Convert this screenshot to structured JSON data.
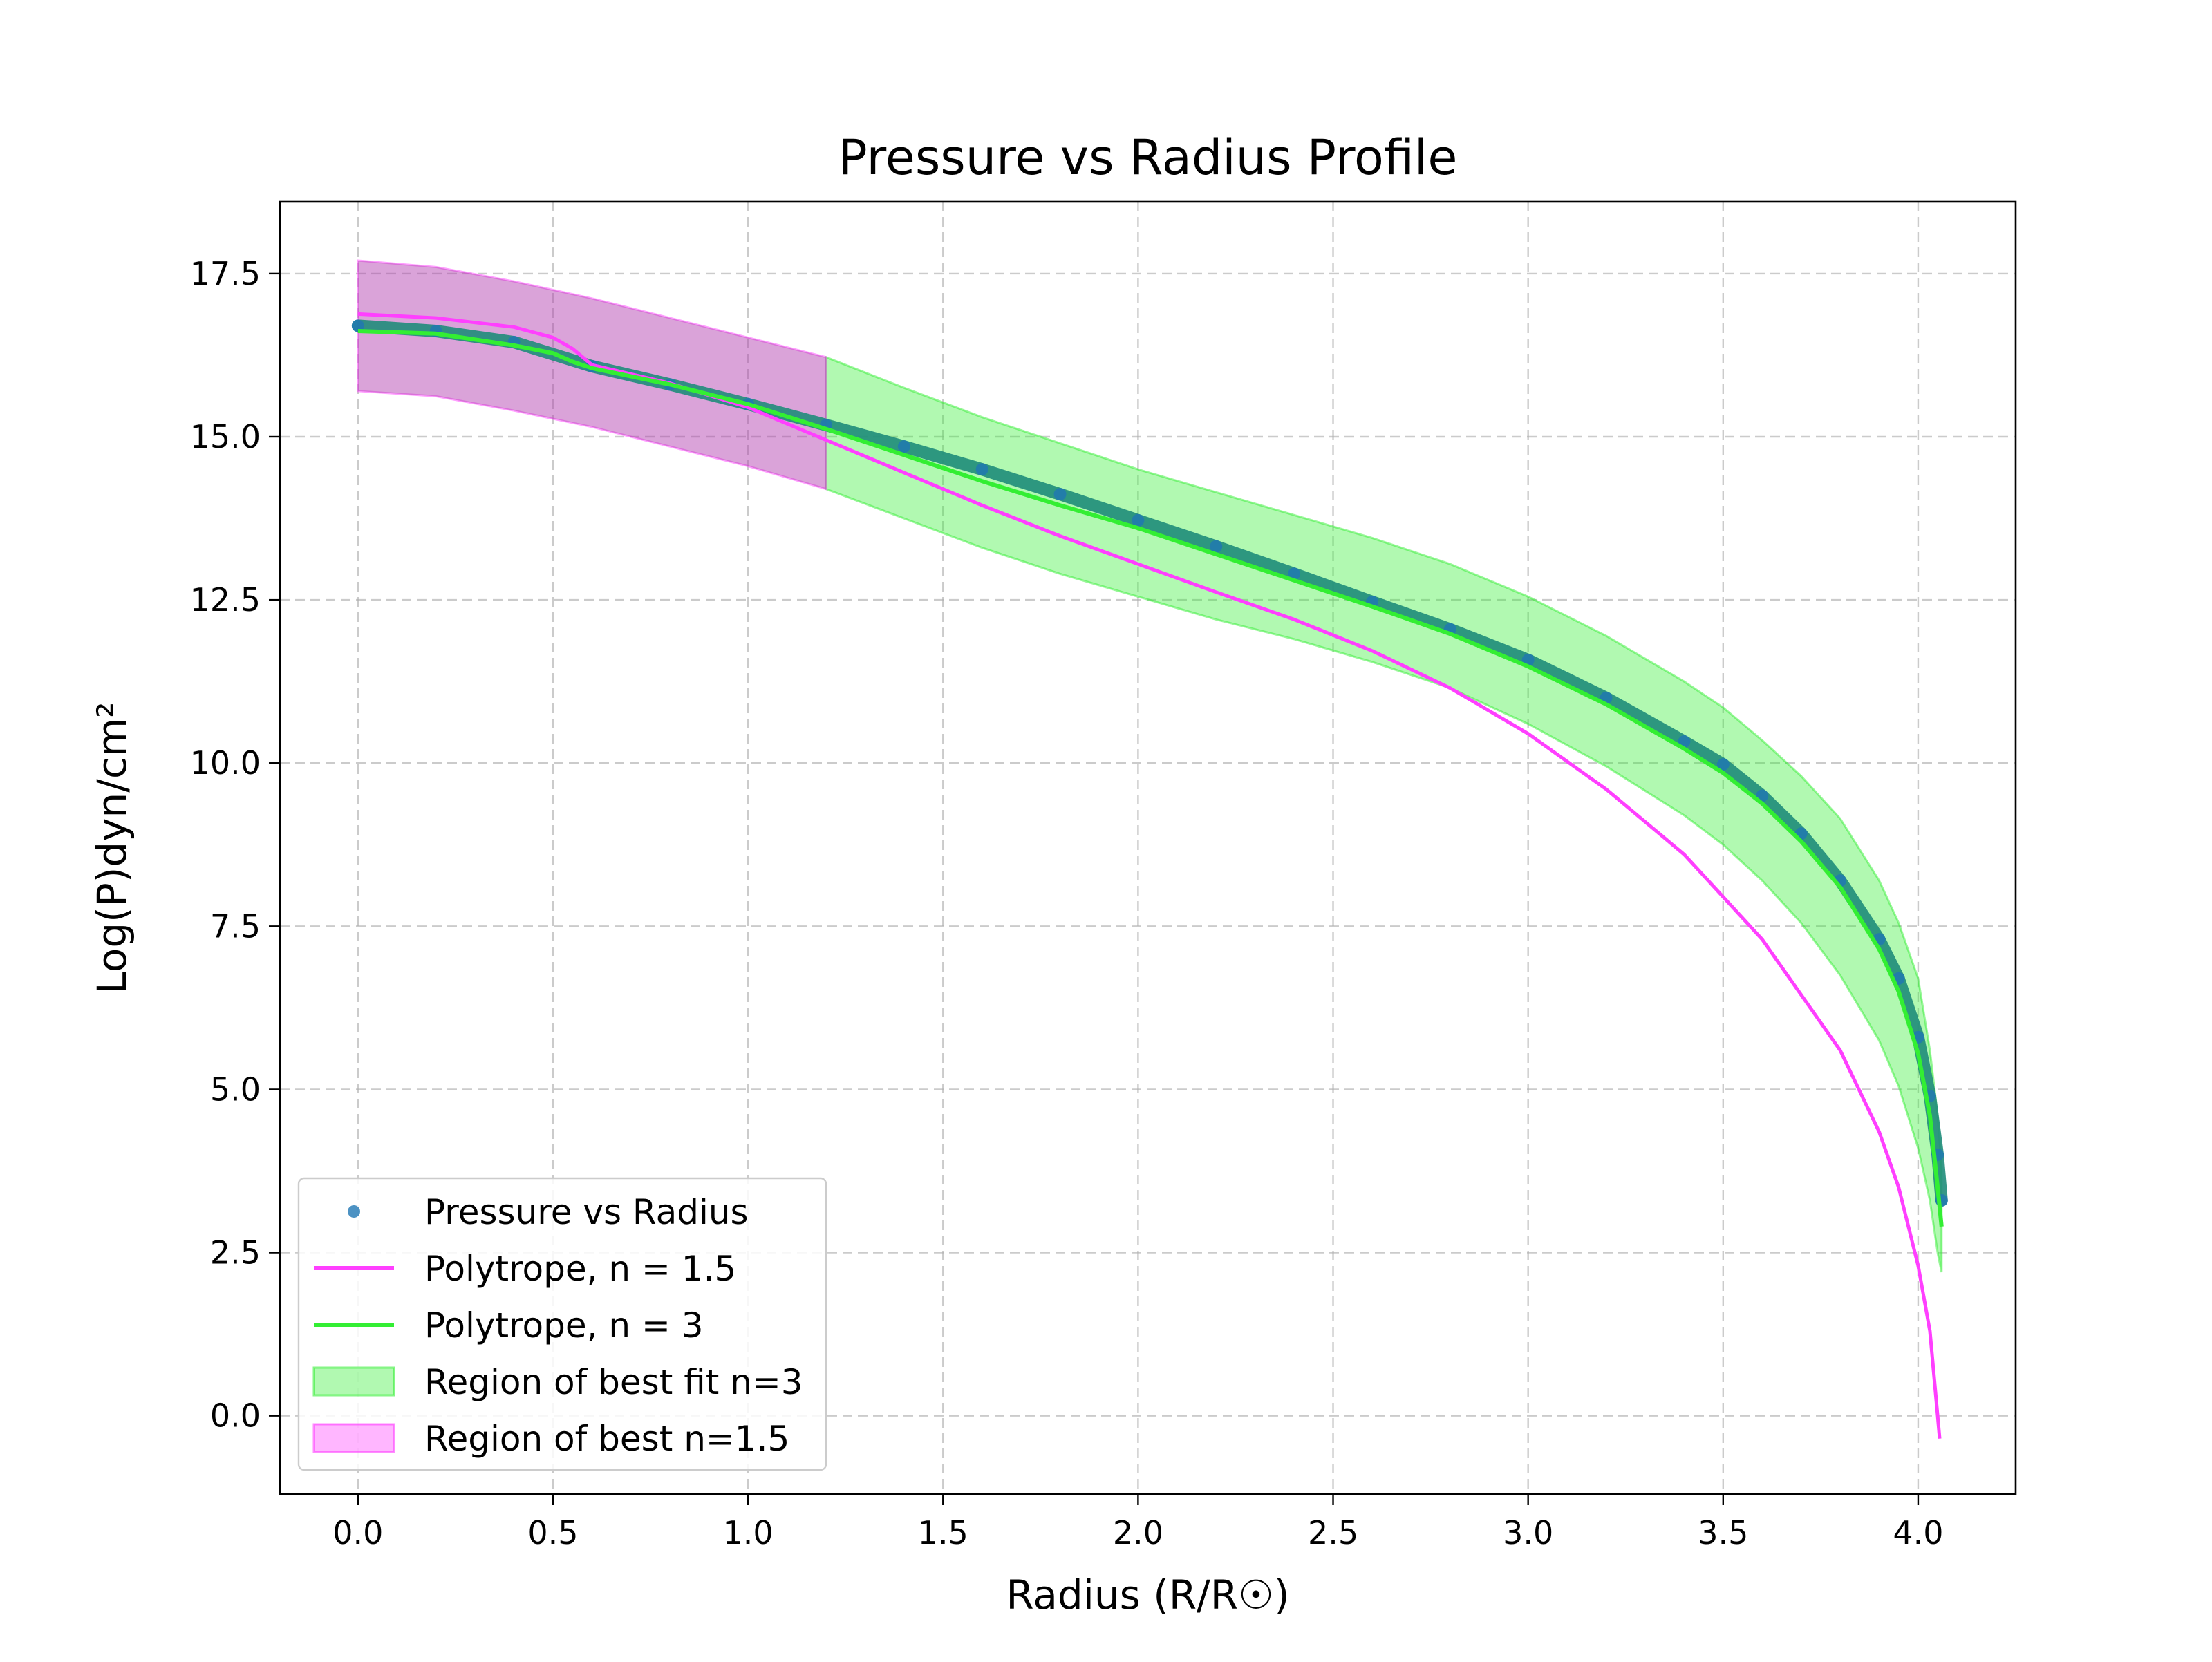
{
  "chart_data": {
    "type": "line",
    "title": "Pressure vs Radius Profile",
    "xlabel": "Radius (R/R☉)",
    "ylabel": "Log(P)dyn/cm²",
    "xlim": [
      -0.2,
      4.25
    ],
    "ylim": [
      -1.2,
      18.6
    ],
    "xticks": [
      0.0,
      0.5,
      1.0,
      1.5,
      2.0,
      2.5,
      3.0,
      3.5,
      4.0
    ],
    "yticks": [
      0.0,
      2.5,
      5.0,
      7.5,
      10.0,
      12.5,
      15.0,
      17.5
    ],
    "grid": true,
    "legend_position": "lower-left",
    "series": [
      {
        "name": "Pressure vs Radius",
        "kind": "scatter",
        "color": "#1f77b4",
        "points": [
          [
            0.0,
            16.7
          ],
          [
            0.2,
            16.62
          ],
          [
            0.4,
            16.45
          ],
          [
            0.6,
            16.08
          ],
          [
            0.8,
            15.8
          ],
          [
            1.0,
            15.5
          ],
          [
            1.2,
            15.18
          ],
          [
            1.4,
            14.85
          ],
          [
            1.6,
            14.5
          ],
          [
            1.8,
            14.12
          ],
          [
            2.0,
            13.72
          ],
          [
            2.2,
            13.32
          ],
          [
            2.4,
            12.9
          ],
          [
            2.6,
            12.47
          ],
          [
            2.8,
            12.05
          ],
          [
            3.0,
            11.58
          ],
          [
            3.2,
            11.0
          ],
          [
            3.4,
            10.33
          ],
          [
            3.5,
            9.98
          ],
          [
            3.6,
            9.5
          ],
          [
            3.7,
            8.92
          ],
          [
            3.8,
            8.2
          ],
          [
            3.9,
            7.3
          ],
          [
            3.95,
            6.7
          ],
          [
            4.0,
            5.8
          ],
          [
            4.03,
            4.9
          ],
          [
            4.05,
            4.0
          ],
          [
            4.06,
            3.3
          ]
        ]
      },
      {
        "name": "Polytrope, n = 1.5",
        "kind": "line",
        "color": "#ff3fff",
        "points": [
          [
            0.0,
            16.88
          ],
          [
            0.2,
            16.82
          ],
          [
            0.4,
            16.68
          ],
          [
            0.5,
            16.52
          ],
          [
            0.55,
            16.35
          ],
          [
            0.6,
            16.1
          ],
          [
            0.8,
            15.82
          ],
          [
            1.0,
            15.45
          ],
          [
            1.2,
            14.95
          ],
          [
            1.4,
            14.45
          ],
          [
            1.6,
            13.95
          ],
          [
            1.8,
            13.48
          ],
          [
            2.0,
            13.05
          ],
          [
            2.2,
            12.62
          ],
          [
            2.4,
            12.2
          ],
          [
            2.6,
            11.72
          ],
          [
            2.8,
            11.15
          ],
          [
            3.0,
            10.45
          ],
          [
            3.2,
            9.6
          ],
          [
            3.4,
            8.6
          ],
          [
            3.6,
            7.3
          ],
          [
            3.8,
            5.6
          ],
          [
            3.9,
            4.35
          ],
          [
            3.95,
            3.5
          ],
          [
            4.0,
            2.3
          ],
          [
            4.03,
            1.3
          ],
          [
            4.05,
            0.0
          ],
          [
            4.055,
            -0.35
          ]
        ]
      },
      {
        "name": "Polytrope, n = 3",
        "kind": "line",
        "color": "#33ee33",
        "points": [
          [
            0.0,
            16.62
          ],
          [
            0.2,
            16.58
          ],
          [
            0.4,
            16.4
          ],
          [
            0.5,
            16.28
          ],
          [
            0.55,
            16.15
          ],
          [
            0.6,
            16.05
          ],
          [
            0.8,
            15.8
          ],
          [
            1.0,
            15.5
          ],
          [
            1.2,
            15.12
          ],
          [
            1.4,
            14.72
          ],
          [
            1.6,
            14.32
          ],
          [
            1.8,
            13.95
          ],
          [
            2.0,
            13.6
          ],
          [
            2.2,
            13.2
          ],
          [
            2.4,
            12.8
          ],
          [
            2.6,
            12.4
          ],
          [
            2.8,
            11.98
          ],
          [
            3.0,
            11.48
          ],
          [
            3.2,
            10.9
          ],
          [
            3.4,
            10.22
          ],
          [
            3.5,
            9.85
          ],
          [
            3.6,
            9.38
          ],
          [
            3.7,
            8.8
          ],
          [
            3.8,
            8.1
          ],
          [
            3.9,
            7.15
          ],
          [
            3.95,
            6.5
          ],
          [
            4.0,
            5.55
          ],
          [
            4.03,
            4.6
          ],
          [
            4.05,
            3.5
          ],
          [
            4.06,
            2.9
          ]
        ]
      }
    ],
    "bands": [
      {
        "name": "Region of best fit n=3",
        "color": "#33ee33",
        "x": [
          1.2,
          1.4,
          1.6,
          1.8,
          2.0,
          2.2,
          2.4,
          2.6,
          2.8,
          3.0,
          3.2,
          3.4,
          3.5,
          3.6,
          3.7,
          3.8,
          3.9,
          3.95,
          4.0,
          4.03,
          4.05,
          4.06
        ],
        "lower": [
          14.2,
          13.75,
          13.3,
          12.9,
          12.55,
          12.2,
          11.9,
          11.55,
          11.15,
          10.6,
          9.95,
          9.2,
          8.75,
          8.2,
          7.55,
          6.75,
          5.75,
          5.05,
          4.1,
          3.3,
          2.5,
          2.2
        ],
        "upper": [
          16.22,
          15.75,
          15.3,
          14.9,
          14.5,
          14.15,
          13.8,
          13.45,
          13.05,
          12.55,
          11.95,
          11.25,
          10.85,
          10.35,
          9.8,
          9.15,
          8.2,
          7.55,
          6.7,
          5.6,
          4.6,
          3.8
        ]
      },
      {
        "name": "Region of best n=1.5",
        "color": "#ff3fff",
        "x": [
          0.0,
          0.2,
          0.4,
          0.6,
          0.8,
          1.0,
          1.2
        ],
        "lower": [
          15.7,
          15.62,
          15.4,
          15.15,
          14.85,
          14.55,
          14.2
        ],
        "upper": [
          17.7,
          17.6,
          17.38,
          17.12,
          16.82,
          16.52,
          16.22
        ]
      }
    ]
  }
}
